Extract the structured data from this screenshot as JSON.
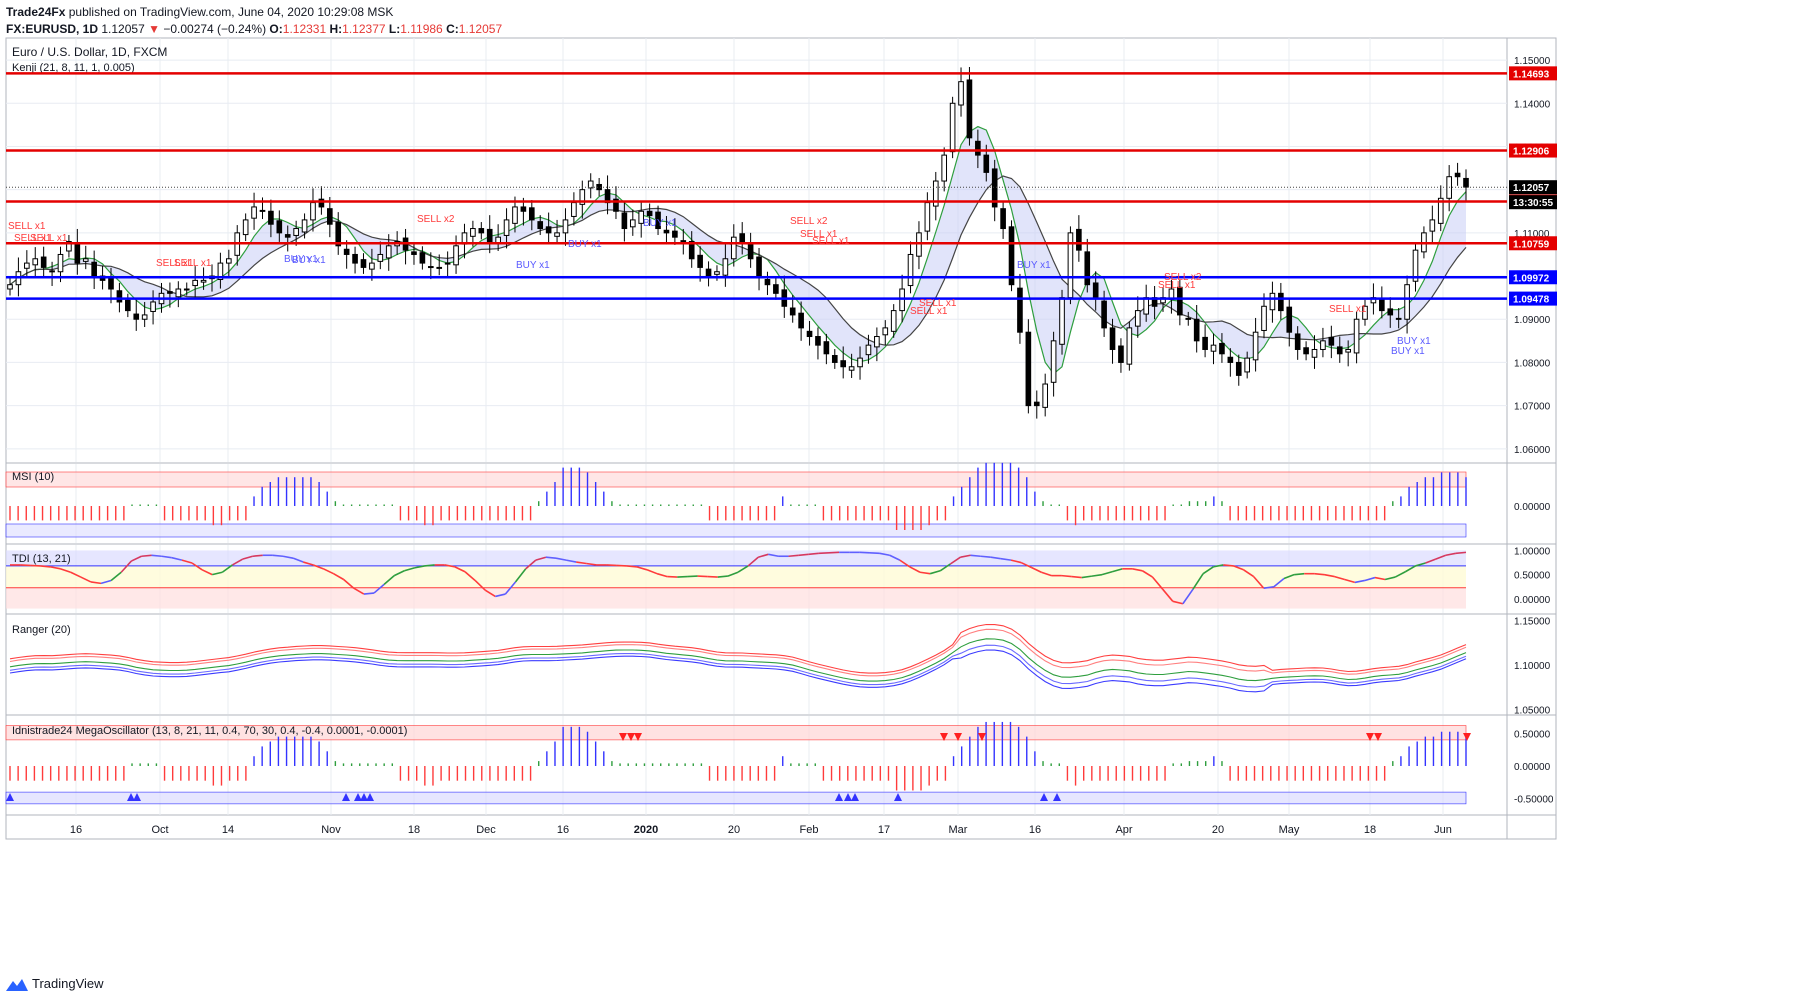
{
  "header": {
    "publisher": "Trade24Fx",
    "published_text": "published on TradingView.com, June 04, 2020 10:29:08 MSK",
    "symbol": "FX:EURUSD, 1D",
    "last": "1.12057",
    "change_arrow": "▼",
    "change": "−0.00274 (−0.24%)",
    "o_label": "O:",
    "o": "1.12331",
    "h_label": "H:",
    "h": "1.12377",
    "l_label": "L:",
    "l": "1.11986",
    "c_label": "C:",
    "c": "1.12057"
  },
  "footer": {
    "brand": "TradingView"
  },
  "colors": {
    "up": "#ffffff",
    "down": "#000000",
    "wick": "#000000",
    "red_line": "#e40000",
    "blue_line": "#0000ff",
    "indicator_blue": "#3333ff",
    "indicator_red": "#ff3b3b",
    "indicator_green": "#2e9e3e",
    "grid": "#e8ecf2",
    "price_bg_red": "#e40000",
    "price_bg_blue": "#0000ff",
    "price_bg_black": "#000000"
  },
  "chart_data": [
    {
      "type": "candlestick",
      "title": "Euro / U.S. Dollar, 1D, FXCM",
      "subtitle": "Kenji (21, 8, 11, 1, 0.005)",
      "x_ticks": [
        "16",
        "Oct",
        "14",
        "Nov",
        "18",
        "Dec",
        "16",
        "2020",
        "20",
        "Feb",
        "17",
        "Mar",
        "16",
        "Apr",
        "20",
        "May",
        "18",
        "Jun"
      ],
      "y_ticks": [
        "1.15000",
        "1.14000",
        "1.13000",
        "1.12000",
        "1.11000",
        "1.10000",
        "1.09000",
        "1.08000",
        "1.07000",
        "1.06000"
      ],
      "ylim": [
        1.0588,
        1.1528
      ],
      "ohlc_close_path": [
        1.098,
        1.101,
        1.103,
        1.104,
        1.102,
        1.101,
        1.105,
        1.108,
        1.103,
        1.104,
        1.1,
        1.099,
        1.097,
        1.094,
        1.092,
        1.09,
        1.091,
        1.094,
        1.096,
        1.096,
        1.097,
        1.097,
        1.099,
        1.099,
        1.1,
        1.103,
        1.104,
        1.11,
        1.113,
        1.116,
        1.115,
        1.112,
        1.11,
        1.109,
        1.111,
        1.113,
        1.117,
        1.116,
        1.112,
        1.107,
        1.105,
        1.103,
        1.102,
        1.103,
        1.105,
        1.107,
        1.108,
        1.106,
        1.105,
        1.103,
        1.102,
        1.102,
        1.103,
        1.107,
        1.11,
        1.111,
        1.11,
        1.108,
        1.109,
        1.113,
        1.116,
        1.115,
        1.113,
        1.111,
        1.11,
        1.11,
        1.113,
        1.117,
        1.12,
        1.122,
        1.12,
        1.117,
        1.115,
        1.111,
        1.113,
        1.115,
        1.114,
        1.111,
        1.11,
        1.109,
        1.108,
        1.104,
        1.102,
        1.1,
        1.101,
        1.104,
        1.109,
        1.108,
        1.104,
        1.1,
        1.098,
        1.096,
        1.093,
        1.091,
        1.088,
        1.086,
        1.084,
        1.082,
        1.08,
        1.079,
        1.079,
        1.081,
        1.084,
        1.086,
        1.088,
        1.092,
        1.097,
        1.105,
        1.11,
        1.117,
        1.122,
        1.128,
        1.14,
        1.145,
        1.132,
        1.128,
        1.124,
        1.116,
        1.111,
        1.098,
        1.087,
        1.07,
        1.07,
        1.075,
        1.085,
        1.095,
        1.11,
        1.106,
        1.098,
        1.095,
        1.088,
        1.083,
        1.08,
        1.088,
        1.092,
        1.095,
        1.093,
        1.095,
        1.097,
        1.091,
        1.09,
        1.085,
        1.083,
        1.084,
        1.082,
        1.08,
        1.077,
        1.081,
        1.087,
        1.093,
        1.096,
        1.092,
        1.087,
        1.083,
        1.082,
        1.083,
        1.085,
        1.084,
        1.082,
        1.083,
        1.09,
        1.093,
        1.095,
        1.092,
        1.091,
        1.09,
        1.098,
        1.106,
        1.11,
        1.113,
        1.118,
        1.123,
        1.123,
        1.1206
      ],
      "horizontal_lines": [
        {
          "value": 1.14693,
          "label": "1.14693",
          "color": "red"
        },
        {
          "value": 1.12906,
          "label": "1.12906",
          "color": "red"
        },
        {
          "value": 1.11726,
          "label": "1.11726",
          "color": "red"
        },
        {
          "value": 1.10759,
          "label": "1.10759",
          "color": "red"
        },
        {
          "value": 1.09972,
          "label": "1.09972",
          "color": "blue"
        },
        {
          "value": 1.09478,
          "label": "1.09478",
          "color": "blue"
        }
      ],
      "last_price": {
        "value": 1.12057,
        "label": "1.12057",
        "countdown": "13:30:55"
      },
      "annotations": [
        {
          "text": "SELL x1",
          "color": "red"
        },
        {
          "text": "SELL x1",
          "color": "red"
        },
        {
          "text": "SELL x1",
          "color": "red"
        },
        {
          "text": "SELL x1",
          "color": "red"
        },
        {
          "text": "SELL x1",
          "color": "red"
        },
        {
          "text": "SELL x2",
          "color": "red"
        },
        {
          "text": "BUY x1",
          "color": "blue"
        },
        {
          "text": "BUY x1",
          "color": "blue"
        },
        {
          "text": "BUY x1",
          "color": "blue"
        },
        {
          "text": "BUY x1",
          "color": "blue"
        },
        {
          "text": "BUY x1",
          "color": "blue"
        },
        {
          "text": "SELL x2",
          "color": "red"
        },
        {
          "text": "SELL x1",
          "color": "red"
        },
        {
          "text": "SELL x1",
          "color": "red"
        },
        {
          "text": "SELL x1",
          "color": "red"
        },
        {
          "text": "SELL x1",
          "color": "red"
        },
        {
          "text": "BUY x1",
          "color": "blue"
        },
        {
          "text": "SELL x2",
          "color": "red"
        },
        {
          "text": "SELL x1",
          "color": "red"
        },
        {
          "text": "SELL x1",
          "color": "red"
        },
        {
          "text": "BUY x1",
          "color": "blue"
        },
        {
          "text": "BUY x1",
          "color": "blue"
        }
      ]
    },
    {
      "type": "bar",
      "title": "MSI (10)",
      "y_ticks": [
        "0.00000"
      ],
      "values": [
        -0.3,
        -0.3,
        -0.3,
        -0.3,
        -0.3,
        -0.3,
        -0.3,
        -0.3,
        -0.3,
        -0.3,
        -0.3,
        -0.3,
        -0.3,
        -0.3,
        -0.3,
        0.0,
        0.0,
        0.0,
        0.0,
        -0.3,
        -0.3,
        -0.3,
        -0.3,
        -0.3,
        -0.3,
        -0.4,
        -0.4,
        -0.3,
        -0.3,
        -0.3,
        0.2,
        0.4,
        0.5,
        0.6,
        0.6,
        0.6,
        0.6,
        0.6,
        0.5,
        0.3,
        0.1,
        0.0,
        0.0,
        0.0,
        0.0,
        0.0,
        0.0,
        0.0,
        -0.3,
        -0.3,
        -0.3,
        -0.4,
        -0.4,
        -0.3,
        -0.3,
        -0.3,
        -0.3,
        -0.3,
        -0.3,
        -0.3,
        -0.3,
        -0.3,
        -0.3,
        -0.3,
        -0.3,
        0.1,
        0.3,
        0.5,
        0.8,
        0.8,
        0.8,
        0.7,
        0.5,
        0.3,
        0.1,
        0.0,
        0.0,
        0.0,
        0.0,
        0.0,
        0.0,
        0.0,
        0.0,
        0.0,
        0.0,
        0.0,
        -0.3,
        -0.3,
        -0.3,
        -0.3,
        -0.3,
        -0.3,
        -0.3,
        -0.3,
        -0.3,
        0.2,
        0.0,
        0.0,
        0.0,
        0.0,
        -0.3,
        -0.3,
        -0.3,
        -0.3,
        -0.3,
        -0.3,
        -0.3,
        -0.3,
        -0.3,
        -0.5,
        -0.5,
        -0.5,
        -0.5,
        -0.4,
        -0.3,
        -0.3,
        0.2,
        0.4,
        0.6,
        0.8,
        0.9,
        0.9,
        0.9,
        0.9,
        0.8,
        0.6,
        0.3,
        0.1,
        0.0,
        0.0,
        -0.3,
        -0.4,
        -0.3,
        -0.3,
        -0.3,
        -0.3,
        -0.3,
        -0.3,
        -0.3,
        -0.3,
        -0.3,
        -0.3,
        -0.3,
        0.0,
        0.0,
        0.1,
        0.1,
        0.1,
        0.2,
        0.1,
        -0.3,
        -0.3,
        -0.3,
        -0.3,
        -0.3,
        -0.3,
        -0.3,
        -0.3,
        -0.3,
        -0.3,
        -0.3,
        -0.3,
        -0.3,
        -0.3,
        -0.3,
        -0.3,
        -0.3,
        -0.3,
        -0.3,
        -0.3,
        0.1,
        0.2,
        0.4,
        0.5,
        0.6,
        0.6,
        0.7,
        0.7,
        0.7,
        0.6
      ]
    },
    {
      "type": "line",
      "title": "TDI (13, 21)",
      "y_ticks": [
        "1.00000",
        "0.50000",
        "0.00000"
      ],
      "ylim": [
        -0.25,
        1.05
      ],
      "values": [
        0.7,
        0.7,
        0.69,
        0.68,
        0.66,
        0.62,
        0.55,
        0.45,
        0.35,
        0.32,
        0.38,
        0.55,
        0.78,
        0.88,
        0.9,
        0.88,
        0.85,
        0.8,
        0.74,
        0.6,
        0.5,
        0.55,
        0.7,
        0.82,
        0.88,
        0.9,
        0.9,
        0.88,
        0.84,
        0.76,
        0.7,
        0.62,
        0.52,
        0.4,
        0.22,
        0.1,
        0.12,
        0.3,
        0.48,
        0.58,
        0.64,
        0.68,
        0.7,
        0.7,
        0.66,
        0.56,
        0.38,
        0.18,
        0.05,
        0.1,
        0.35,
        0.62,
        0.8,
        0.86,
        0.84,
        0.8,
        0.76,
        0.73,
        0.7,
        0.7,
        0.69,
        0.68,
        0.66,
        0.6,
        0.52,
        0.46,
        0.45,
        0.46,
        0.47,
        0.46,
        0.45,
        0.47,
        0.55,
        0.68,
        0.86,
        0.92,
        0.88,
        0.88,
        0.9,
        0.92,
        0.94,
        0.95,
        0.96,
        0.96,
        0.96,
        0.95,
        0.94,
        0.9,
        0.8,
        0.66,
        0.55,
        0.52,
        0.58,
        0.72,
        0.86,
        0.9,
        0.88,
        0.86,
        0.83,
        0.8,
        0.75,
        0.65,
        0.55,
        0.48,
        0.48,
        0.46,
        0.44,
        0.47,
        0.5,
        0.56,
        0.62,
        0.62,
        0.58,
        0.45,
        0.2,
        -0.05,
        -0.1,
        0.2,
        0.52,
        0.66,
        0.7,
        0.68,
        0.6,
        0.46,
        0.22,
        0.25,
        0.42,
        0.5,
        0.52,
        0.52,
        0.5,
        0.46,
        0.4,
        0.34,
        0.38,
        0.44,
        0.4,
        0.45,
        0.56,
        0.68,
        0.74,
        0.82,
        0.9,
        0.94,
        0.96
      ]
    },
    {
      "type": "line",
      "title": "Ranger (20)",
      "y_ticks": [
        "1.15000",
        "1.10000",
        "1.05000"
      ],
      "ylim": [
        1.047,
        1.153
      ],
      "series": [
        {
          "color": "#ff4040"
        },
        {
          "color": "#ff8080"
        },
        {
          "color": "#2e9e3e"
        },
        {
          "color": "#6a6aff"
        },
        {
          "color": "#3b3bff"
        }
      ]
    },
    {
      "type": "bar",
      "title": "Idnistrade24 MegaOscillator (13, 8, 21, 11, 0.4, 70, 30, 0.4, -0.4, 0.0001, -0.0001)",
      "y_ticks": [
        "0.50000",
        "0.00000",
        "-0.50000"
      ],
      "ylim": [
        -0.72,
        0.72
      ]
    }
  ]
}
